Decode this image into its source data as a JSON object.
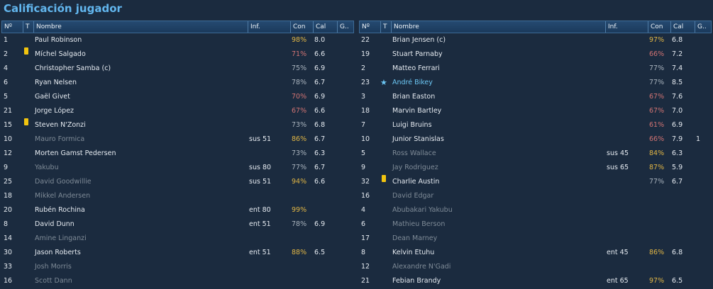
{
  "title": "Calificación jugador",
  "headers": {
    "num": "Nº",
    "t": "T",
    "name": "Nombre",
    "inf": "Inf.",
    "con": "Con",
    "cal": "Cal",
    "g": "G.."
  },
  "left_rows": [
    {
      "num": "1",
      "name": "Paul Robinson",
      "inf": "",
      "con": "98%",
      "level": "high",
      "cal": "8.0",
      "g": "",
      "card": false,
      "star": false,
      "dim": false
    },
    {
      "num": "2",
      "name": "Míchel Salgado",
      "inf": "",
      "con": "71%",
      "level": "low",
      "cal": "6.6",
      "g": "",
      "card": true,
      "star": false,
      "dim": false
    },
    {
      "num": "4",
      "name": "Christopher Samba (c)",
      "inf": "",
      "con": "75%",
      "level": "mid",
      "cal": "6.9",
      "g": "",
      "card": false,
      "star": false,
      "dim": false
    },
    {
      "num": "6",
      "name": "Ryan Nelsen",
      "inf": "",
      "con": "78%",
      "level": "mid",
      "cal": "6.7",
      "g": "",
      "card": false,
      "star": false,
      "dim": false
    },
    {
      "num": "5",
      "name": "Gaël Givet",
      "inf": "",
      "con": "70%",
      "level": "low",
      "cal": "6.9",
      "g": "",
      "card": false,
      "star": false,
      "dim": false
    },
    {
      "num": "21",
      "name": "Jorge López",
      "inf": "",
      "con": "67%",
      "level": "low",
      "cal": "6.6",
      "g": "",
      "card": false,
      "star": false,
      "dim": false
    },
    {
      "num": "15",
      "name": "Steven N'Zonzi",
      "inf": "",
      "con": "73%",
      "level": "mid",
      "cal": "6.8",
      "g": "",
      "card": true,
      "star": false,
      "dim": false
    },
    {
      "num": "10",
      "name": "Mauro Formica",
      "inf": "sus 51",
      "con": "86%",
      "level": "high",
      "cal": "6.7",
      "g": "",
      "card": false,
      "star": false,
      "dim": true
    },
    {
      "num": "12",
      "name": "Morten Gamst Pedersen",
      "inf": "",
      "con": "73%",
      "level": "mid",
      "cal": "6.3",
      "g": "",
      "card": false,
      "star": false,
      "dim": false
    },
    {
      "num": "9",
      "name": "Yakubu",
      "inf": "sus 80",
      "con": "77%",
      "level": "mid",
      "cal": "6.7",
      "g": "",
      "card": false,
      "star": false,
      "dim": true
    },
    {
      "num": "25",
      "name": "David Goodwillie",
      "inf": "sus 51",
      "con": "94%",
      "level": "high",
      "cal": "6.6",
      "g": "",
      "card": false,
      "star": false,
      "dim": true
    },
    {
      "num": "18",
      "name": "Mikkel Andersen",
      "inf": "",
      "con": "",
      "level": "mid",
      "cal": "",
      "g": "",
      "card": false,
      "star": false,
      "dim": true
    },
    {
      "num": "20",
      "name": "Rubén Rochina",
      "inf": "ent 80",
      "con": "99%",
      "level": "high",
      "cal": "",
      "g": "",
      "card": false,
      "star": false,
      "dim": false
    },
    {
      "num": "8",
      "name": "David Dunn",
      "inf": "ent 51",
      "con": "78%",
      "level": "mid",
      "cal": "6.9",
      "g": "",
      "card": false,
      "star": false,
      "dim": false
    },
    {
      "num": "14",
      "name": "Amine Linganzi",
      "inf": "",
      "con": "",
      "level": "mid",
      "cal": "",
      "g": "",
      "card": false,
      "star": false,
      "dim": true
    },
    {
      "num": "30",
      "name": "Jason Roberts",
      "inf": "ent 51",
      "con": "88%",
      "level": "high",
      "cal": "6.5",
      "g": "",
      "card": false,
      "star": false,
      "dim": false
    },
    {
      "num": "33",
      "name": "Josh Morris",
      "inf": "",
      "con": "",
      "level": "mid",
      "cal": "",
      "g": "",
      "card": false,
      "star": false,
      "dim": true
    },
    {
      "num": "16",
      "name": "Scott Dann",
      "inf": "",
      "con": "",
      "level": "mid",
      "cal": "",
      "g": "",
      "card": false,
      "star": false,
      "dim": true
    }
  ],
  "right_rows": [
    {
      "num": "22",
      "name": "Brian Jensen (c)",
      "inf": "",
      "con": "97%",
      "level": "high",
      "cal": "6.8",
      "g": "",
      "card": false,
      "star": false,
      "dim": false
    },
    {
      "num": "19",
      "name": "Stuart Parnaby",
      "inf": "",
      "con": "66%",
      "level": "low",
      "cal": "7.2",
      "g": "",
      "card": false,
      "star": false,
      "dim": false
    },
    {
      "num": "2",
      "name": "Matteo Ferrari",
      "inf": "",
      "con": "77%",
      "level": "mid",
      "cal": "7.4",
      "g": "",
      "card": false,
      "star": false,
      "dim": false
    },
    {
      "num": "23",
      "name": "André Bikey",
      "inf": "",
      "con": "77%",
      "level": "mid",
      "cal": "8.5",
      "g": "",
      "card": false,
      "star": true,
      "dim": false
    },
    {
      "num": "3",
      "name": "Brian Easton",
      "inf": "",
      "con": "67%",
      "level": "low",
      "cal": "7.6",
      "g": "",
      "card": false,
      "star": false,
      "dim": false
    },
    {
      "num": "18",
      "name": "Marvin Bartley",
      "inf": "",
      "con": "67%",
      "level": "low",
      "cal": "7.0",
      "g": "",
      "card": false,
      "star": false,
      "dim": false
    },
    {
      "num": "7",
      "name": "Luigi Bruins",
      "inf": "",
      "con": "61%",
      "level": "low",
      "cal": "6.9",
      "g": "",
      "card": false,
      "star": false,
      "dim": false
    },
    {
      "num": "10",
      "name": "Junior Stanislas",
      "inf": "",
      "con": "66%",
      "level": "low",
      "cal": "7.9",
      "g": "1",
      "card": false,
      "star": false,
      "dim": false
    },
    {
      "num": "5",
      "name": "Ross Wallace",
      "inf": "sus 45",
      "con": "84%",
      "level": "high",
      "cal": "6.3",
      "g": "",
      "card": false,
      "star": false,
      "dim": true
    },
    {
      "num": "9",
      "name": "Jay Rodriguez",
      "inf": "sus 65",
      "con": "87%",
      "level": "high",
      "cal": "5.9",
      "g": "",
      "card": false,
      "star": false,
      "dim": true
    },
    {
      "num": "32",
      "name": "Charlie Austin",
      "inf": "",
      "con": "77%",
      "level": "mid",
      "cal": "6.7",
      "g": "",
      "card": true,
      "star": false,
      "dim": false
    },
    {
      "num": "16",
      "name": "David Edgar",
      "inf": "",
      "con": "",
      "level": "mid",
      "cal": "",
      "g": "",
      "card": false,
      "star": false,
      "dim": true
    },
    {
      "num": "4",
      "name": "Abubakari Yakubu",
      "inf": "",
      "con": "",
      "level": "mid",
      "cal": "",
      "g": "",
      "card": false,
      "star": false,
      "dim": true
    },
    {
      "num": "6",
      "name": "Mathieu Berson",
      "inf": "",
      "con": "",
      "level": "mid",
      "cal": "",
      "g": "",
      "card": false,
      "star": false,
      "dim": true
    },
    {
      "num": "17",
      "name": "Dean Marney",
      "inf": "",
      "con": "",
      "level": "mid",
      "cal": "",
      "g": "",
      "card": false,
      "star": false,
      "dim": true
    },
    {
      "num": "8",
      "name": "Kelvin Etuhu",
      "inf": "ent 45",
      "con": "86%",
      "level": "high",
      "cal": "6.8",
      "g": "",
      "card": false,
      "star": false,
      "dim": false
    },
    {
      "num": "12",
      "name": "Alexandre N'Gadi",
      "inf": "",
      "con": "",
      "level": "mid",
      "cal": "",
      "g": "",
      "card": false,
      "star": false,
      "dim": true
    },
    {
      "num": "21",
      "name": "Febian Brandy",
      "inf": "ent 65",
      "con": "97%",
      "level": "high",
      "cal": "6.5",
      "g": "",
      "card": false,
      "star": false,
      "dim": false
    }
  ]
}
